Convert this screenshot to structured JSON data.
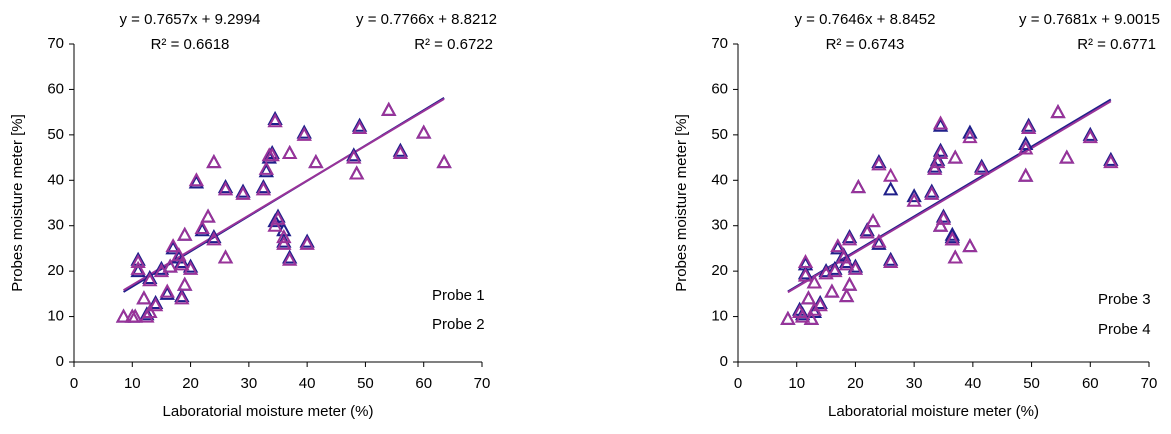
{
  "chart_data": [
    {
      "type": "scatter",
      "xlabel": "Laboratorial moisture meter (%)",
      "ylabel": "Probes moisture meter [%]",
      "xlim": [
        0,
        70
      ],
      "xticks": [
        0,
        10,
        20,
        30,
        40,
        50,
        60,
        70
      ],
      "ylim": [
        0,
        70
      ],
      "yticks": [
        0,
        10,
        20,
        30,
        40,
        50,
        60,
        70
      ],
      "series": [
        {
          "name": "Probe 1",
          "color": "#1f1f8a",
          "x": [
            8.5,
            10,
            10.5,
            11,
            11,
            12,
            12.5,
            13,
            13,
            14,
            15,
            16,
            16.5,
            17,
            18,
            18.5,
            18.5,
            19,
            19,
            20,
            21,
            22,
            23,
            24,
            24,
            26,
            26,
            29,
            32.5,
            33,
            33.5,
            34,
            34.5,
            34.5,
            35,
            36,
            36,
            37,
            37,
            39.5,
            40,
            41.5,
            48,
            48.5,
            49,
            54,
            56,
            60,
            63.5
          ],
          "values": [
            10,
            10,
            10,
            20,
            22.5,
            14,
            10.5,
            11,
            18.5,
            13,
            20.5,
            15,
            21,
            25,
            23,
            14.5,
            22,
            17,
            28,
            21,
            39.5,
            29,
            32,
            27.5,
            44,
            23,
            38.5,
            37.5,
            38.5,
            42,
            45,
            46,
            31,
            53.5,
            32,
            26.5,
            29,
            23,
            46,
            50.5,
            26.5,
            44,
            45.5,
            41.5,
            52,
            55.5,
            46.5,
            50.5,
            44
          ],
          "fit": {
            "slope": 0.7766,
            "intercept": 8.8212,
            "r2": 0.6722,
            "label": "y = 0.7766x + 8.8212",
            "r2_label": "R² = 0.6722"
          }
        },
        {
          "name": "Probe 2",
          "color": "#993399",
          "x": [
            8.5,
            10,
            10.5,
            11,
            11,
            12,
            12.5,
            13,
            13,
            14,
            15,
            16,
            16.5,
            17,
            18,
            18.5,
            18.5,
            19,
            19,
            20,
            21,
            22,
            23,
            24,
            24,
            26,
            26,
            29,
            32.5,
            33,
            33.5,
            34,
            34.5,
            34.5,
            35,
            36,
            36,
            37,
            37,
            39.5,
            40,
            41.5,
            48,
            48.5,
            49,
            54,
            56,
            60,
            63.5
          ],
          "values": [
            10,
            10,
            10,
            20.5,
            22,
            14,
            10,
            11,
            18,
            12.5,
            20,
            15.5,
            21,
            25.5,
            23.5,
            14,
            21.5,
            17,
            28,
            20.5,
            40,
            29.5,
            32,
            27,
            44,
            23,
            38,
            37,
            38,
            42.5,
            45.5,
            45.5,
            30,
            53,
            31.5,
            26,
            27.5,
            22.5,
            46,
            50,
            26,
            44,
            45,
            41.5,
            51.5,
            55.5,
            46,
            50.5,
            44
          ],
          "fit": {
            "slope": 0.7657,
            "intercept": 9.2994,
            "r2": 0.6618,
            "label": "y = 0.7657x + 9.2994",
            "r2_label": "R² = 0.6618"
          }
        }
      ]
    },
    {
      "type": "scatter",
      "xlabel": "Laboratorial moisture meter (%)",
      "ylabel": "Probes moisture meter [%]",
      "xlim": [
        0,
        70
      ],
      "xticks": [
        0,
        10,
        20,
        30,
        40,
        50,
        60,
        70
      ],
      "ylim": [
        0,
        70
      ],
      "yticks": [
        0,
        10,
        20,
        30,
        40,
        50,
        60,
        70
      ],
      "series": [
        {
          "name": "Probe 3",
          "color": "#1f1f8a",
          "x": [
            8.5,
            10.5,
            11,
            11.5,
            11.5,
            12,
            12.5,
            13,
            13,
            14,
            15,
            16,
            16.5,
            17,
            18,
            18.5,
            18.5,
            19,
            19,
            20,
            20.5,
            22,
            23,
            24,
            24,
            26,
            26,
            30,
            33,
            33.5,
            34,
            34.5,
            34.5,
            34.5,
            35,
            36.5,
            36.5,
            37,
            37,
            39.5,
            39.5,
            41.5,
            49,
            49,
            49.5,
            54.5,
            56,
            60,
            63.5
          ],
          "values": [
            9.5,
            11.5,
            10.5,
            21.5,
            19.5,
            14,
            9.5,
            11,
            17.5,
            13,
            20,
            15.5,
            20.5,
            25,
            23.5,
            14.5,
            22,
            17,
            27.5,
            21,
            38.5,
            29,
            31,
            26,
            44,
            22.5,
            38,
            36.5,
            37.5,
            43,
            44.5,
            46.5,
            30,
            52,
            32,
            27.5,
            28,
            23,
            45,
            50.5,
            25.5,
            43,
            48,
            41,
            52,
            55,
            45,
            50,
            44.5
          ]
        },
        {
          "name": "Probe 4",
          "color": "#993399",
          "x": [
            8.5,
            10.5,
            11,
            11.5,
            11.5,
            12,
            12.5,
            13,
            13,
            14,
            15,
            16,
            16.5,
            17,
            18,
            18.5,
            18.5,
            19,
            19,
            20,
            20.5,
            22,
            23,
            24,
            24,
            26,
            26,
            30,
            33,
            33.5,
            34,
            34.5,
            34.5,
            34.5,
            35,
            36.5,
            36.5,
            37,
            37,
            39.5,
            39.5,
            41.5,
            49,
            49,
            49.5,
            54.5,
            56,
            60,
            63.5
          ],
          "values": [
            9.5,
            11,
            10,
            22,
            19,
            14,
            9.5,
            11.5,
            17.5,
            12.5,
            19.5,
            15.5,
            20,
            25.5,
            23,
            14.5,
            21.5,
            17,
            27,
            20.5,
            38.5,
            28.5,
            31,
            26.5,
            43.5,
            22,
            41,
            35.5,
            37,
            42.5,
            44,
            46,
            30,
            52.5,
            31.5,
            27,
            27,
            23,
            45,
            49.5,
            25.5,
            42.5,
            47,
            41,
            51.5,
            55,
            45,
            49.5,
            44
          ]
        }
      ],
      "fits": [
        {
          "series": "Probe 3",
          "slope": 0.7681,
          "intercept": 9.0015,
          "r2": 0.6771,
          "label": "y = 0.7681x + 9.0015",
          "r2_label": "R² = 0.6771"
        },
        {
          "series": "Probe 4",
          "slope": 0.7646,
          "intercept": 8.8452,
          "r2": 0.6743,
          "label": "y = 0.7646x + 8.8452",
          "r2_label": "R² = 0.6743"
        }
      ]
    }
  ]
}
